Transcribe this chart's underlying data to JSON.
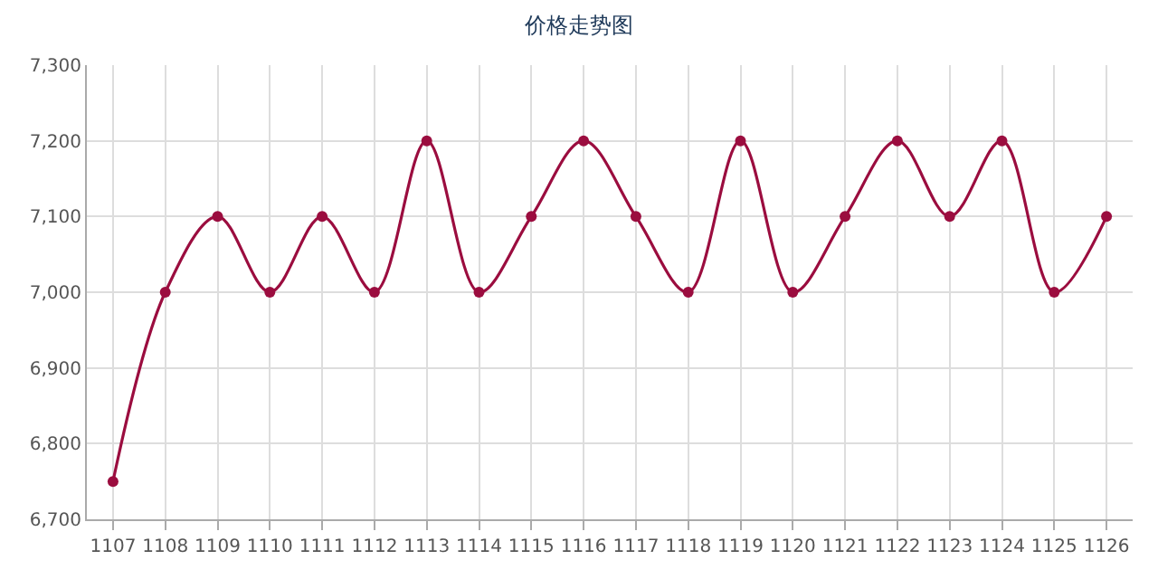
{
  "chart_data": {
    "type": "line",
    "title": "价格走势图",
    "categories": [
      "1107",
      "1108",
      "1109",
      "1110",
      "1111",
      "1112",
      "1113",
      "1114",
      "1115",
      "1116",
      "1117",
      "1118",
      "1119",
      "1120",
      "1121",
      "1122",
      "1123",
      "1124",
      "1125",
      "1126"
    ],
    "series": [
      {
        "color": "#9b0d3f",
        "values": [
          6750,
          7000,
          7100,
          7000,
          7100,
          7000,
          7200,
          7000,
          7100,
          7200,
          7100,
          7000,
          7200,
          7000,
          7100,
          7200,
          7100,
          7200,
          7000,
          7100
        ]
      }
    ],
    "ylim": [
      6700,
      7300
    ],
    "yticks": [
      {
        "value": 6700,
        "label": "6,700"
      },
      {
        "value": 6800,
        "label": "6,800"
      },
      {
        "value": 6900,
        "label": "6,900"
      },
      {
        "value": 7000,
        "label": "7,000"
      },
      {
        "value": 7100,
        "label": "7,100"
      },
      {
        "value": 7200,
        "label": "7,200"
      },
      {
        "value": 7300,
        "label": "7,300"
      }
    ],
    "grid": true,
    "legend": false,
    "marker": "circle",
    "line_style": "solid"
  }
}
